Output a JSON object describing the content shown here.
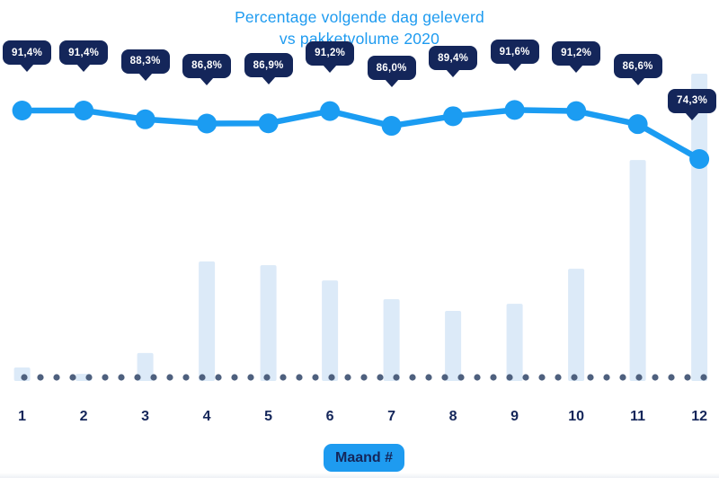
{
  "title": {
    "line1": "Percentage volgende dag geleverd",
    "line2": "vs pakketvolume 2020"
  },
  "xaxis": {
    "title": "Maand #",
    "labels": [
      "1",
      "2",
      "3",
      "4",
      "5",
      "6",
      "7",
      "8",
      "9",
      "10",
      "11",
      "12"
    ]
  },
  "chart_data": {
    "type": "combo",
    "title": "Percentage volgende dag geleverd vs pakketvolume 2020",
    "categories": [
      1,
      2,
      3,
      4,
      5,
      6,
      7,
      8,
      9,
      10,
      11,
      12
    ],
    "xlabel": "Maand #",
    "grid": false,
    "legend": false,
    "series": [
      {
        "name": "Percentage volgende dag geleverd",
        "type": "line",
        "unit": "%",
        "values": [
          91.4,
          91.4,
          88.3,
          86.8,
          86.9,
          91.2,
          86.0,
          89.4,
          91.6,
          91.2,
          86.6,
          74.3
        ],
        "labels": [
          "91,4%",
          "91,4%",
          "88,3%",
          "86,8%",
          "86,9%",
          "91,2%",
          "86,0%",
          "89,4%",
          "91,6%",
          "91,2%",
          "86,6%",
          "74,3%"
        ]
      },
      {
        "name": "Pakketvolume 2020",
        "type": "bar",
        "unit": "% van maximum (geschat, geen as getoond)",
        "values": [
          4.4,
          2.3,
          9.1,
          38.9,
          37.7,
          32.7,
          26.6,
          22.8,
          25.1,
          36.5,
          71.9,
          100
        ]
      }
    ]
  },
  "colors": {
    "line": "#1B9CF2",
    "marker": "#1B9CF2",
    "bar": "#DCEAF8",
    "callout_bg": "#14265A",
    "callout_text": "#FFFFFF",
    "baseline_dots": "#4E607E",
    "axis_label": "#14265A",
    "title": "#1E9BF0",
    "chip_bg": "#1E9BF0",
    "chip_text": "#14265A",
    "background": "#FFFFFF"
  }
}
